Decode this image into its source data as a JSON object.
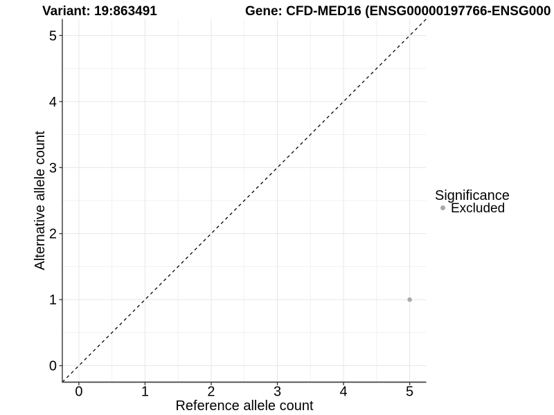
{
  "titles": {
    "variant": "Variant: 19:863491",
    "gene": "Gene: CFD-MED16 (ENSG00000197766-ENSG000"
  },
  "chart_data": {
    "type": "scatter",
    "xlabel": "Reference allele count",
    "ylabel": "Alternative allele count",
    "xlim": [
      -0.25,
      5.25
    ],
    "ylim": [
      -0.25,
      5.25
    ],
    "x_ticks": [
      0,
      1,
      2,
      3,
      4,
      5
    ],
    "y_ticks": [
      0,
      1,
      2,
      3,
      4,
      5
    ],
    "grid": "major gridlines at integers, minor gridlines at 0.5 steps, light grey on white panel",
    "identity_line": {
      "slope": 1,
      "intercept": 0,
      "style": "dashed",
      "color": "#000000"
    },
    "series": [
      {
        "name": "Excluded",
        "color": "#aaaaaa",
        "point_radius": 3.3,
        "points": [
          {
            "x": 5,
            "y": 1
          }
        ]
      }
    ],
    "legend": {
      "title": "Significance",
      "position": "right",
      "entries": [
        {
          "label": "Excluded",
          "color": "#a8a8a8"
        }
      ]
    }
  },
  "colors": {
    "background": "#ffffff",
    "axis_line": "#404040",
    "tick_mark": "#333333",
    "grid_major": "#e6e6e6",
    "grid_minor": "#f1f1f1",
    "dashed_line": "#000000",
    "text": "#000000"
  }
}
